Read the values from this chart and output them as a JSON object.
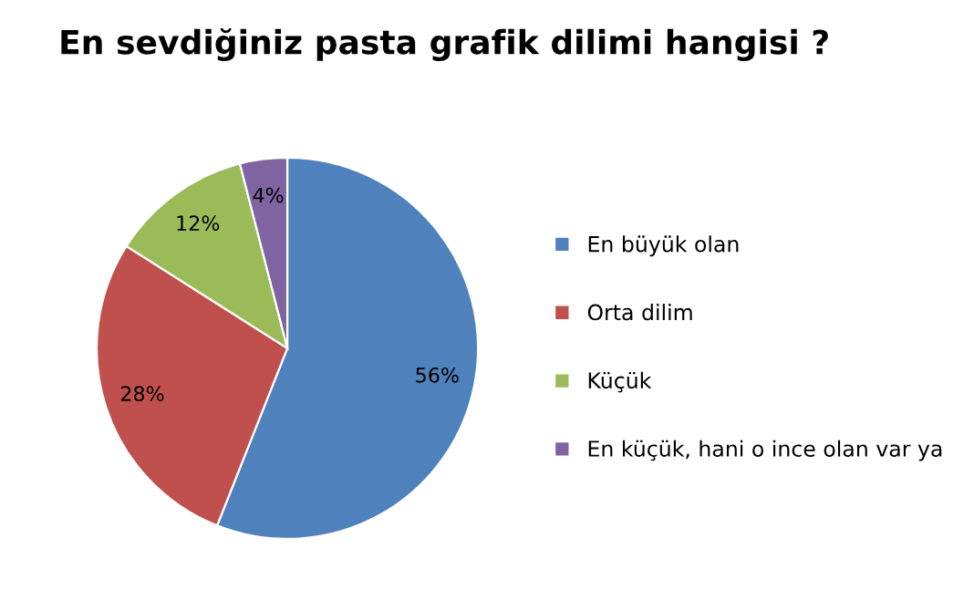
{
  "chart_data": {
    "type": "pie",
    "title": "En sevdiğiniz pasta grafik dilimi hangisi ?",
    "categories": [
      "En büyük olan",
      "Orta dilim",
      "Küçük",
      "En küçük, hani o ince olan var ya"
    ],
    "values": [
      56,
      28,
      12,
      4
    ],
    "colors": [
      "#4f81bd",
      "#c0504d",
      "#9bbb59",
      "#8064a2"
    ],
    "value_labels": [
      "56%",
      "28%",
      "12%",
      "4%"
    ],
    "legend": "right"
  }
}
